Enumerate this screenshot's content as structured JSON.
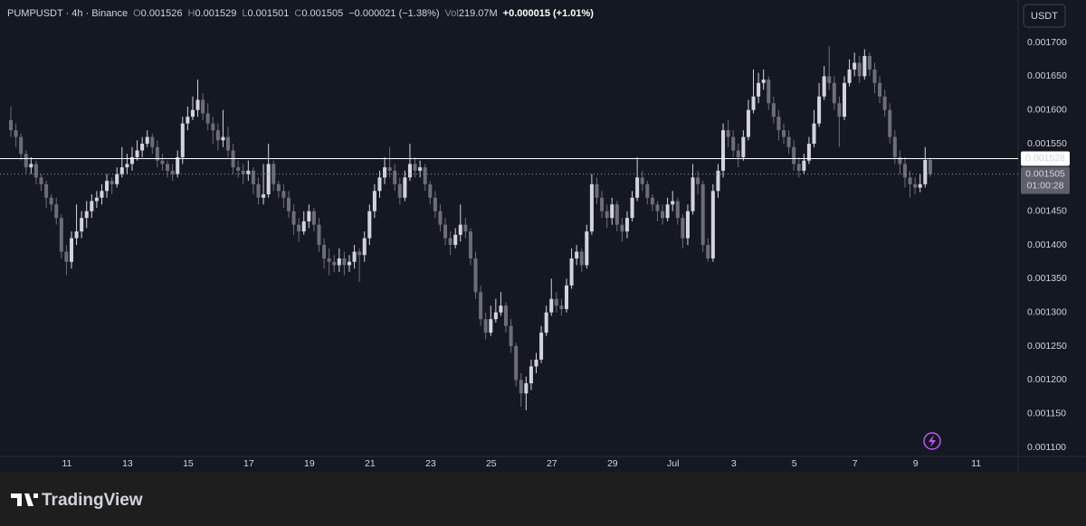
{
  "chart_data": {
    "type": "candlestick",
    "symbol": "PUMPUSDT · 4h · Binance",
    "ohlc_labels": [
      "O",
      "H",
      "L",
      "C"
    ],
    "change": "−0.000021 (−1.38%)",
    "volume_label": "Vol",
    "volume": "219.07M",
    "bar_change": "+0.000015 (+1.01%)",
    "currency": "USDT",
    "up_color": "#d1d4dc",
    "down_color": "#6b6e78",
    "xlim": [
      -2.15,
      199.4
    ],
    "ylim": [
      0.0010866,
      0.001763
    ],
    "yticks": [
      {
        "value": 0.0011,
        "label": "0.001100"
      },
      {
        "value": 0.00115,
        "label": "0.001150"
      },
      {
        "value": 0.0012,
        "label": "0.001200"
      },
      {
        "value": 0.00125,
        "label": "0.001250"
      },
      {
        "value": 0.0013,
        "label": "0.001300"
      },
      {
        "value": 0.00135,
        "label": "0.001350"
      },
      {
        "value": 0.0014,
        "label": "0.001400"
      },
      {
        "value": 0.00145,
        "label": "0.001450"
      },
      {
        "value": 0.00155,
        "label": "0.001550"
      },
      {
        "value": 0.0016,
        "label": "0.001600"
      },
      {
        "value": 0.00165,
        "label": "0.001650"
      },
      {
        "value": 0.0017,
        "label": "0.001700"
      }
    ],
    "xticks": [
      {
        "value": 11.1,
        "label": "11"
      },
      {
        "value": 23.1,
        "label": "13"
      },
      {
        "value": 35.1,
        "label": "15"
      },
      {
        "value": 47.1,
        "label": "17"
      },
      {
        "value": 59.1,
        "label": "19"
      },
      {
        "value": 71.1,
        "label": "21"
      },
      {
        "value": 83.1,
        "label": "23"
      },
      {
        "value": 95.1,
        "label": "25"
      },
      {
        "value": 107.1,
        "label": "27"
      },
      {
        "value": 119.1,
        "label": "29"
      },
      {
        "value": 131.1,
        "label": "Jul"
      },
      {
        "value": 143.1,
        "label": "3"
      },
      {
        "value": 155.1,
        "label": "5"
      },
      {
        "value": 167.1,
        "label": "7"
      },
      {
        "value": 179.1,
        "label": "9"
      },
      {
        "value": 191.1,
        "label": "11"
      }
    ],
    "price_lines": [
      {
        "value": 0.001528
      },
      {
        "value": 0.001505,
        "countdown": "01:00:28"
      }
    ],
    "candles": [
      [
        0.001585,
        0.001605,
        0.00156,
        0.00157
      ],
      [
        0.00157,
        0.00158,
        0.001545,
        0.00156
      ],
      [
        0.00156,
        0.001565,
        0.001525,
        0.001535
      ],
      [
        0.001535,
        0.00154,
        0.001505,
        0.001515
      ],
      [
        0.001515,
        0.00153,
        0.001505,
        0.00152
      ],
      [
        0.00152,
        0.001525,
        0.00149,
        0.0015
      ],
      [
        0.0015,
        0.001505,
        0.00148,
        0.00149
      ],
      [
        0.00149,
        0.001495,
        0.001455,
        0.00147
      ],
      [
        0.00147,
        0.001475,
        0.00145,
        0.00146
      ],
      [
        0.00146,
        0.00147,
        0.00143,
        0.00144
      ],
      [
        0.00144,
        0.001445,
        0.00138,
        0.00139
      ],
      [
        0.00139,
        0.0014,
        0.001355,
        0.001375
      ],
      [
        0.001375,
        0.00142,
        0.001365,
        0.00141
      ],
      [
        0.00141,
        0.00146,
        0.0014,
        0.00142
      ],
      [
        0.00142,
        0.00145,
        0.00141,
        0.00144
      ],
      [
        0.00144,
        0.001465,
        0.001425,
        0.00145
      ],
      [
        0.00145,
        0.001475,
        0.00144,
        0.001465
      ],
      [
        0.001465,
        0.00148,
        0.001455,
        0.00147
      ],
      [
        0.00147,
        0.00149,
        0.00146,
        0.00148
      ],
      [
        0.00148,
        0.001505,
        0.00147,
        0.001495
      ],
      [
        0.001495,
        0.0015,
        0.001475,
        0.00149
      ],
      [
        0.00149,
        0.001515,
        0.001485,
        0.001505
      ],
      [
        0.001505,
        0.001545,
        0.0015,
        0.001515
      ],
      [
        0.001515,
        0.001535,
        0.001505,
        0.00152
      ],
      [
        0.00152,
        0.001545,
        0.00151,
        0.00153
      ],
      [
        0.00153,
        0.001555,
        0.001525,
        0.00154
      ],
      [
        0.00154,
        0.00156,
        0.00153,
        0.00155
      ],
      [
        0.00155,
        0.00157,
        0.001545,
        0.00156
      ],
      [
        0.00156,
        0.001565,
        0.001535,
        0.001545
      ],
      [
        0.001545,
        0.001555,
        0.001515,
        0.001525
      ],
      [
        0.001525,
        0.001535,
        0.00151,
        0.00152
      ],
      [
        0.00152,
        0.001525,
        0.0015,
        0.00151
      ],
      [
        0.00151,
        0.00152,
        0.001495,
        0.001505
      ],
      [
        0.001505,
        0.00154,
        0.0015,
        0.00153
      ],
      [
        0.00153,
        0.00159,
        0.00152,
        0.00158
      ],
      [
        0.00158,
        0.001605,
        0.00157,
        0.00159
      ],
      [
        0.00159,
        0.00162,
        0.001585,
        0.0016
      ],
      [
        0.0016,
        0.001645,
        0.00159,
        0.001615
      ],
      [
        0.001615,
        0.001625,
        0.001585,
        0.001595
      ],
      [
        0.001595,
        0.00161,
        0.00157,
        0.00158
      ],
      [
        0.00158,
        0.00159,
        0.00155,
        0.00157
      ],
      [
        0.00157,
        0.00158,
        0.00154,
        0.001555
      ],
      [
        0.001555,
        0.0016,
        0.001545,
        0.00156
      ],
      [
        0.00156,
        0.001575,
        0.00153,
        0.00154
      ],
      [
        0.00154,
        0.00155,
        0.001505,
        0.001515
      ],
      [
        0.001515,
        0.001525,
        0.0015,
        0.00151
      ],
      [
        0.00151,
        0.00152,
        0.00149,
        0.001505
      ],
      [
        0.001505,
        0.001525,
        0.001495,
        0.00151
      ],
      [
        0.00151,
        0.001515,
        0.001475,
        0.00149
      ],
      [
        0.00149,
        0.0015,
        0.00146,
        0.00147
      ],
      [
        0.00147,
        0.00152,
        0.00146,
        0.001475
      ],
      [
        0.001475,
        0.00155,
        0.00147,
        0.00152
      ],
      [
        0.00152,
        0.001525,
        0.00148,
        0.00149
      ],
      [
        0.00149,
        0.001495,
        0.00147,
        0.00148
      ],
      [
        0.00148,
        0.00149,
        0.001455,
        0.00147
      ],
      [
        0.00147,
        0.00148,
        0.00144,
        0.00145
      ],
      [
        0.00145,
        0.00146,
        0.001415,
        0.00143
      ],
      [
        0.00143,
        0.00144,
        0.001405,
        0.00142
      ],
      [
        0.00142,
        0.00145,
        0.001415,
        0.001435
      ],
      [
        0.001435,
        0.00146,
        0.001425,
        0.00145
      ],
      [
        0.00145,
        0.001455,
        0.00142,
        0.00143
      ],
      [
        0.00143,
        0.00144,
        0.00139,
        0.0014
      ],
      [
        0.0014,
        0.00141,
        0.001365,
        0.00138
      ],
      [
        0.00138,
        0.001395,
        0.001355,
        0.001375
      ],
      [
        0.001375,
        0.001385,
        0.00136,
        0.00137
      ],
      [
        0.00137,
        0.001395,
        0.00136,
        0.00138
      ],
      [
        0.00138,
        0.00139,
        0.001355,
        0.00137
      ],
      [
        0.00137,
        0.001385,
        0.00136,
        0.001375
      ],
      [
        0.001375,
        0.0014,
        0.001365,
        0.00139
      ],
      [
        0.00139,
        0.001395,
        0.001345,
        0.001385
      ],
      [
        0.001385,
        0.00142,
        0.001375,
        0.00141
      ],
      [
        0.00141,
        0.00146,
        0.0014,
        0.00145
      ],
      [
        0.00145,
        0.00149,
        0.00144,
        0.00148
      ],
      [
        0.00148,
        0.00151,
        0.00147,
        0.0015
      ],
      [
        0.0015,
        0.00153,
        0.00149,
        0.001515
      ],
      [
        0.001515,
        0.001545,
        0.0015,
        0.00151
      ],
      [
        0.00151,
        0.00152,
        0.00148,
        0.00149
      ],
      [
        0.00149,
        0.0015,
        0.00146,
        0.00147
      ],
      [
        0.00147,
        0.00151,
        0.001465,
        0.0015
      ],
      [
        0.0015,
        0.00155,
        0.001495,
        0.00152
      ],
      [
        0.00152,
        0.00153,
        0.0015,
        0.00151
      ],
      [
        0.00151,
        0.001525,
        0.0015,
        0.001515
      ],
      [
        0.001515,
        0.00152,
        0.00148,
        0.00149
      ],
      [
        0.00149,
        0.001495,
        0.00146,
        0.00147
      ],
      [
        0.00147,
        0.00148,
        0.00144,
        0.00145
      ],
      [
        0.00145,
        0.00146,
        0.00142,
        0.00143
      ],
      [
        0.00143,
        0.00144,
        0.0014,
        0.00141
      ],
      [
        0.00141,
        0.00142,
        0.001385,
        0.0014
      ],
      [
        0.0014,
        0.001425,
        0.001395,
        0.001415
      ],
      [
        0.001415,
        0.00146,
        0.001405,
        0.00143
      ],
      [
        0.00143,
        0.00144,
        0.00141,
        0.00142
      ],
      [
        0.00142,
        0.001425,
        0.00137,
        0.00138
      ],
      [
        0.00138,
        0.00139,
        0.00132,
        0.00133
      ],
      [
        0.00133,
        0.00134,
        0.00128,
        0.00129
      ],
      [
        0.00129,
        0.0013,
        0.00126,
        0.00127
      ],
      [
        0.00127,
        0.00131,
        0.001265,
        0.00129
      ],
      [
        0.00129,
        0.00132,
        0.001285,
        0.0013
      ],
      [
        0.0013,
        0.00133,
        0.001295,
        0.00131
      ],
      [
        0.00131,
        0.001315,
        0.00127,
        0.00128
      ],
      [
        0.00128,
        0.00129,
        0.00124,
        0.00125
      ],
      [
        0.00125,
        0.001255,
        0.00119,
        0.0012
      ],
      [
        0.0012,
        0.00121,
        0.00116,
        0.00118
      ],
      [
        0.00118,
        0.001205,
        0.001155,
        0.001195
      ],
      [
        0.001195,
        0.00123,
        0.001185,
        0.00122
      ],
      [
        0.00122,
        0.00124,
        0.00121,
        0.00123
      ],
      [
        0.00123,
        0.00128,
        0.001225,
        0.00127
      ],
      [
        0.00127,
        0.00131,
        0.001265,
        0.0013
      ],
      [
        0.0013,
        0.00135,
        0.001295,
        0.00132
      ],
      [
        0.00132,
        0.00133,
        0.0013,
        0.00131
      ],
      [
        0.00131,
        0.00132,
        0.001295,
        0.001305
      ],
      [
        0.001305,
        0.00135,
        0.0013,
        0.00134
      ],
      [
        0.00134,
        0.001395,
        0.001335,
        0.00138
      ],
      [
        0.00138,
        0.0014,
        0.00137,
        0.00139
      ],
      [
        0.00139,
        0.001395,
        0.00136,
        0.00137
      ],
      [
        0.00137,
        0.00143,
        0.001365,
        0.00142
      ],
      [
        0.00142,
        0.001505,
        0.001415,
        0.00149
      ],
      [
        0.00149,
        0.0015,
        0.00146,
        0.00147
      ],
      [
        0.00147,
        0.00148,
        0.00144,
        0.00145
      ],
      [
        0.00145,
        0.00146,
        0.001425,
        0.00144
      ],
      [
        0.00144,
        0.00147,
        0.00143,
        0.00146
      ],
      [
        0.00146,
        0.001465,
        0.00142,
        0.00143
      ],
      [
        0.00143,
        0.00144,
        0.001405,
        0.00142
      ],
      [
        0.00142,
        0.00145,
        0.00141,
        0.00144
      ],
      [
        0.00144,
        0.00148,
        0.001435,
        0.00147
      ],
      [
        0.00147,
        0.00153,
        0.001465,
        0.0015
      ],
      [
        0.0015,
        0.00151,
        0.00148,
        0.00149
      ],
      [
        0.00149,
        0.001495,
        0.00146,
        0.00147
      ],
      [
        0.00147,
        0.001475,
        0.00145,
        0.00146
      ],
      [
        0.00146,
        0.001465,
        0.001435,
        0.00145
      ],
      [
        0.00145,
        0.00146,
        0.00143,
        0.00144
      ],
      [
        0.00144,
        0.00147,
        0.001435,
        0.00146
      ],
      [
        0.00146,
        0.00148,
        0.00145,
        0.001465
      ],
      [
        0.001465,
        0.00147,
        0.00143,
        0.00144
      ],
      [
        0.00144,
        0.001445,
        0.001395,
        0.00141
      ],
      [
        0.00141,
        0.00146,
        0.0014,
        0.00145
      ],
      [
        0.00145,
        0.00152,
        0.001445,
        0.0015
      ],
      [
        0.0015,
        0.00151,
        0.001475,
        0.00149
      ],
      [
        0.00149,
        0.001495,
        0.00139,
        0.0014
      ],
      [
        0.0014,
        0.00141,
        0.001375,
        0.00138
      ],
      [
        0.00138,
        0.00149,
        0.001375,
        0.00148
      ],
      [
        0.00148,
        0.00152,
        0.00147,
        0.00151
      ],
      [
        0.00151,
        0.00158,
        0.0015,
        0.00157
      ],
      [
        0.00157,
        0.001585,
        0.001545,
        0.00156
      ],
      [
        0.00156,
        0.00157,
        0.00153,
        0.00154
      ],
      [
        0.00154,
        0.00155,
        0.001515,
        0.00153
      ],
      [
        0.00153,
        0.00157,
        0.001525,
        0.00156
      ],
      [
        0.00156,
        0.001615,
        0.001555,
        0.0016
      ],
      [
        0.0016,
        0.00166,
        0.001595,
        0.00162
      ],
      [
        0.00162,
        0.001655,
        0.00161,
        0.00164
      ],
      [
        0.00164,
        0.00166,
        0.00163,
        0.001645
      ],
      [
        0.001645,
        0.00165,
        0.0016,
        0.00161
      ],
      [
        0.00161,
        0.00162,
        0.00158,
        0.00159
      ],
      [
        0.00159,
        0.0016,
        0.001555,
        0.00157
      ],
      [
        0.00157,
        0.00158,
        0.00155,
        0.00156
      ],
      [
        0.00156,
        0.00157,
        0.001535,
        0.001545
      ],
      [
        0.001545,
        0.001555,
        0.00151,
        0.00152
      ],
      [
        0.00152,
        0.00153,
        0.0015,
        0.00151
      ],
      [
        0.00151,
        0.001535,
        0.001505,
        0.001525
      ],
      [
        0.001525,
        0.00156,
        0.00152,
        0.00155
      ],
      [
        0.00155,
        0.0016,
        0.001545,
        0.00158
      ],
      [
        0.00158,
        0.00164,
        0.001575,
        0.00162
      ],
      [
        0.00162,
        0.001665,
        0.001615,
        0.00165
      ],
      [
        0.00165,
        0.001695,
        0.00163,
        0.00164
      ],
      [
        0.00164,
        0.00165,
        0.0016,
        0.00161
      ],
      [
        0.00161,
        0.00162,
        0.001545,
        0.00159
      ],
      [
        0.00159,
        0.00165,
        0.001585,
        0.00164
      ],
      [
        0.00164,
        0.001675,
        0.001635,
        0.00166
      ],
      [
        0.00166,
        0.001685,
        0.00165,
        0.00167
      ],
      [
        0.00167,
        0.00168,
        0.00164,
        0.00165
      ],
      [
        0.00165,
        0.00169,
        0.001645,
        0.00168
      ],
      [
        0.00168,
        0.001685,
        0.00165,
        0.00166
      ],
      [
        0.00166,
        0.00167,
        0.001625,
        0.00164
      ],
      [
        0.00164,
        0.00165,
        0.00161,
        0.00162
      ],
      [
        0.00162,
        0.00163,
        0.00159,
        0.0016
      ],
      [
        0.0016,
        0.00161,
        0.00155,
        0.00156
      ],
      [
        0.00156,
        0.00157,
        0.00152,
        0.00153
      ],
      [
        0.00153,
        0.00154,
        0.001505,
        0.00152
      ],
      [
        0.00152,
        0.00153,
        0.001485,
        0.0015
      ],
      [
        0.0015,
        0.00151,
        0.00147,
        0.00149
      ],
      [
        0.00149,
        0.0015,
        0.001475,
        0.001485
      ],
      [
        0.001485,
        0.001505,
        0.001478,
        0.00149
      ],
      [
        0.00149,
        0.001545,
        0.001485,
        0.001526
      ],
      [
        0.001526,
        0.001529,
        0.001501,
        0.001505
      ]
    ],
    "brand": "TradingView"
  }
}
